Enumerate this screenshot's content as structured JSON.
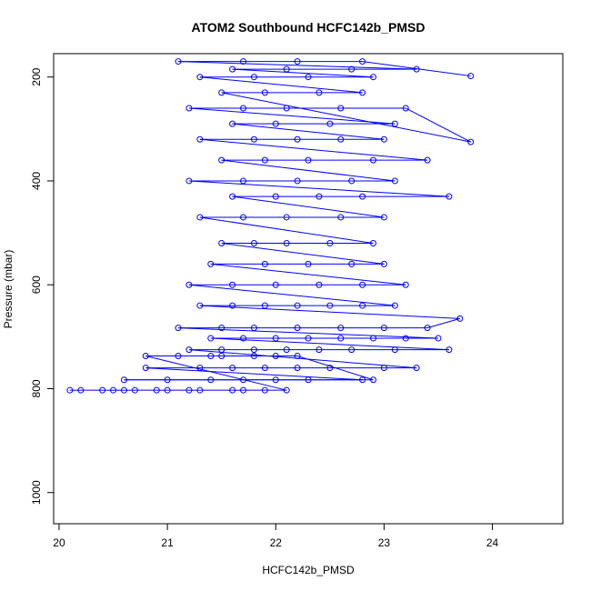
{
  "chart_data": {
    "type": "scatter",
    "title": "ATOM2 Southbound HCFC142b_PMSD",
    "xlabel": "HCFC142b_PMSD",
    "ylabel": "Pressure (mbar)",
    "xlim": [
      19.95,
      24.65
    ],
    "ylim": [
      1060,
      155
    ],
    "y_reversed": true,
    "x_ticks": [
      20,
      21,
      22,
      23,
      24
    ],
    "y_ticks": [
      200,
      400,
      600,
      800,
      1000
    ],
    "marker": "open-circle",
    "connect_points": true,
    "grid": false,
    "series_color": "#0000ff",
    "x": [
      20.1,
      20.2,
      20.4,
      20.5,
      20.6,
      20.7,
      20.9,
      21.0,
      21.2,
      21.3,
      21.6,
      21.7,
      21.9,
      22.1,
      20.8,
      21.1,
      21.4,
      21.5,
      21.8,
      22.0,
      22.2,
      22.9,
      20.6,
      21.0,
      21.4,
      21.7,
      22.0,
      22.3,
      22.8,
      20.8,
      21.3,
      21.6,
      21.9,
      22.2,
      22.5,
      23.0,
      23.3,
      21.2,
      21.5,
      21.8,
      22.1,
      22.4,
      22.7,
      23.1,
      23.6,
      21.4,
      21.7,
      22.0,
      22.3,
      22.6,
      22.9,
      23.2,
      23.5,
      21.1,
      21.5,
      21.8,
      22.2,
      22.6,
      23.0,
      23.4,
      23.7,
      21.3,
      21.6,
      21.9,
      22.2,
      22.5,
      22.8,
      23.1,
      21.2,
      21.6,
      22.0,
      22.4,
      22.8,
      23.2,
      21.4,
      21.9,
      22.3,
      22.7,
      23.0,
      21.5,
      21.8,
      22.1,
      22.5,
      22.9,
      21.3,
      21.7,
      22.1,
      22.6,
      23.0,
      21.6,
      22.0,
      22.4,
      22.8,
      23.6,
      21.2,
      21.7,
      22.2,
      22.7,
      23.1,
      21.5,
      21.9,
      22.3,
      22.9,
      23.4,
      21.3,
      21.8,
      22.2,
      22.6,
      23.0,
      21.6,
      22.0,
      22.5,
      23.1,
      21.2,
      21.7,
      22.1,
      22.6,
      23.2,
      23.8,
      21.5,
      21.9,
      22.4,
      22.8,
      21.3,
      21.8,
      22.3,
      22.9,
      21.6,
      22.1,
      22.7,
      23.3,
      21.1,
      21.7,
      22.2,
      22.8,
      23.8
    ],
    "y": [
      803,
      803,
      803,
      803,
      803,
      803,
      803,
      803,
      803,
      803,
      803,
      803,
      803,
      803,
      737,
      737,
      737,
      737,
      737,
      737,
      737,
      783,
      783,
      783,
      783,
      783,
      783,
      783,
      783,
      760,
      760,
      760,
      760,
      760,
      760,
      760,
      760,
      725,
      725,
      725,
      725,
      725,
      725,
      725,
      725,
      703,
      703,
      703,
      703,
      703,
      703,
      703,
      703,
      683,
      683,
      683,
      683,
      683,
      683,
      683,
      665,
      640,
      640,
      640,
      640,
      640,
      640,
      640,
      600,
      600,
      600,
      600,
      600,
      600,
      560,
      560,
      560,
      560,
      560,
      520,
      520,
      520,
      520,
      520,
      470,
      470,
      470,
      470,
      470,
      430,
      430,
      430,
      430,
      430,
      400,
      400,
      400,
      400,
      400,
      360,
      360,
      360,
      360,
      360,
      320,
      320,
      320,
      320,
      320,
      290,
      290,
      290,
      290,
      260,
      260,
      260,
      260,
      260,
      325,
      230,
      230,
      230,
      230,
      200,
      200,
      200,
      200,
      185,
      185,
      185,
      185,
      170,
      170,
      170,
      170,
      198
    ]
  }
}
